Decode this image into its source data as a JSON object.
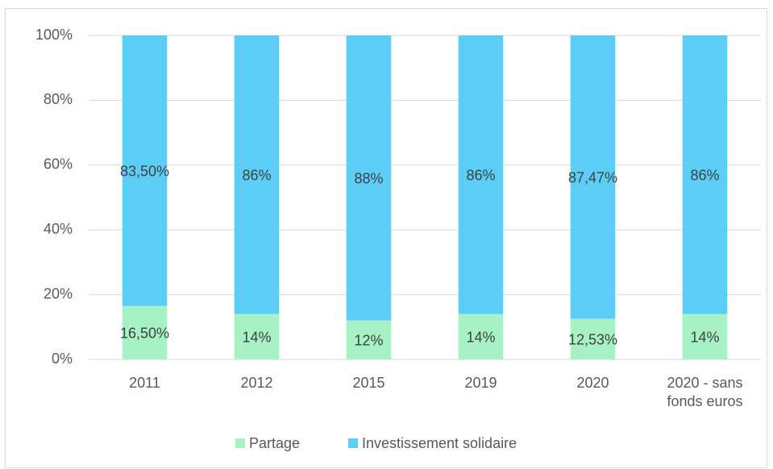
{
  "chart_data": {
    "type": "stacked_bar",
    "categories": [
      "2011",
      "2012",
      "2015",
      "2019",
      "2020",
      "2020 - sans fonds euros"
    ],
    "series": [
      {
        "name": "Partage",
        "color": "#a6f2c4",
        "values": [
          16.5,
          14,
          12,
          14,
          12.53,
          14
        ],
        "value_labels": [
          "16,50%",
          "14%",
          "12%",
          "14%",
          "12,53%",
          "14%"
        ]
      },
      {
        "name": "Investissement solidaire",
        "color": "#5ccdf5",
        "values": [
          83.5,
          86,
          88,
          86,
          87.47,
          86
        ],
        "value_labels": [
          "83,50%",
          "86%",
          "88%",
          "86%",
          "87,47%",
          "86%"
        ]
      }
    ],
    "ylim": [
      0,
      100
    ],
    "yticks": [
      {
        "value": 0,
        "label": "0%"
      },
      {
        "value": 20,
        "label": "20%"
      },
      {
        "value": 40,
        "label": "40%"
      },
      {
        "value": 60,
        "label": "60%"
      },
      {
        "value": 80,
        "label": "80%"
      },
      {
        "value": 100,
        "label": "100%"
      }
    ],
    "grid": true,
    "legend": "bottom"
  }
}
